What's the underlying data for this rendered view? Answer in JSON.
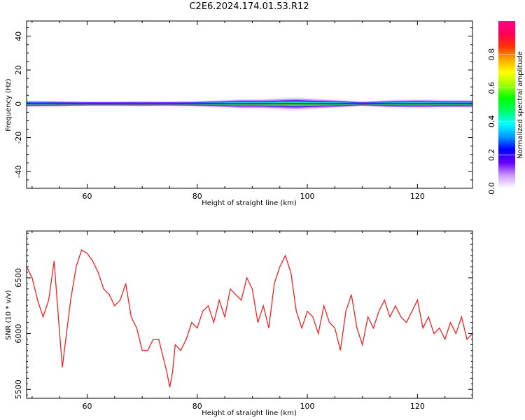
{
  "figure": {
    "title": "C2E6.2024.174.01.53.R12"
  },
  "chart_data": [
    {
      "type": "heatmap",
      "xlabel": "Height of straight line (km)",
      "ylabel": "Frequency (Hz)",
      "xlim": [
        49,
        130
      ],
      "ylim": [
        -50,
        49
      ],
      "xticks": [
        60,
        80,
        100,
        120
      ],
      "yticks": [
        -40,
        -20,
        0,
        20,
        40
      ],
      "colorbar": {
        "label": "Normalized spectral amplitude",
        "range": [
          0,
          1
        ],
        "ticks": [
          "0.0",
          "0.2",
          "0.4",
          "0.6",
          "0.8"
        ],
        "colors": [
          "#ffffff",
          "#cc99ff",
          "#6600ff",
          "#0000ff",
          "#0099ff",
          "#00ffff",
          "#00ff66",
          "#00ff00",
          "#99ff00",
          "#ffff00",
          "#ffaa00",
          "#ff3300",
          "#ff0055",
          "#ff0088"
        ]
      },
      "spectrum_profile": {
        "heights_km": [
          49,
          55,
          60,
          65,
          70,
          75,
          80,
          85,
          88,
          92,
          95,
          98,
          100,
          103,
          106,
          110,
          115,
          120,
          125,
          130
        ],
        "half_width_hz": [
          2.0,
          1.8,
          1.5,
          1.5,
          1.6,
          1.5,
          1.8,
          2.5,
          3.0,
          3.0,
          3.5,
          4.0,
          3.5,
          3.0,
          2.5,
          1.5,
          2.5,
          2.8,
          2.5,
          2.5
        ]
      },
      "center_line_color": "#000000"
    },
    {
      "type": "line",
      "xlabel": "Height of straight line (km)",
      "ylabel": "SNR (10 * v/v)",
      "xlim": [
        49,
        130
      ],
      "ylim": [
        5420,
        6920
      ],
      "xticks": [
        60,
        80,
        100,
        120
      ],
      "yticks": [
        5500,
        6000,
        6500
      ],
      "color": "#ee2222",
      "x": [
        49,
        50,
        51,
        52,
        53,
        54,
        55,
        55.5,
        56,
        57,
        58,
        59,
        60,
        61,
        62,
        63,
        64,
        65,
        66,
        67,
        68,
        69,
        70,
        71,
        72,
        73,
        74,
        74.5,
        75,
        75.5,
        76,
        77,
        78,
        79,
        80,
        81,
        82,
        83,
        84,
        85,
        86,
        87,
        88,
        89,
        90,
        91,
        92,
        93,
        94,
        95,
        96,
        97,
        98,
        99,
        100,
        101,
        102,
        103,
        104,
        105,
        106,
        107,
        108,
        109,
        110,
        111,
        112,
        113,
        114,
        115,
        116,
        117,
        118,
        119,
        120,
        121,
        122,
        123,
        124,
        125,
        126,
        127,
        128,
        129,
        130
      ],
      "values": [
        6600,
        6500,
        6300,
        6150,
        6300,
        6650,
        6000,
        5700,
        5900,
        6300,
        6600,
        6750,
        6720,
        6650,
        6550,
        6400,
        6350,
        6250,
        6300,
        6450,
        6150,
        6050,
        5850,
        5850,
        5950,
        5950,
        5750,
        5650,
        5520,
        5650,
        5900,
        5850,
        5950,
        6100,
        6050,
        6200,
        6250,
        6100,
        6300,
        6150,
        6400,
        6350,
        6300,
        6500,
        6400,
        6100,
        6250,
        6050,
        6450,
        6600,
        6700,
        6550,
        6200,
        6050,
        6200,
        6150,
        6000,
        6250,
        6100,
        6050,
        5850,
        6200,
        6350,
        6050,
        5900,
        6150,
        6050,
        6200,
        6300,
        6150,
        6250,
        6150,
        6100,
        6200,
        6300,
        6050,
        6150,
        6000,
        6050,
        5950,
        6100,
        6000,
        6150,
        5950,
        6000
      ]
    }
  ]
}
